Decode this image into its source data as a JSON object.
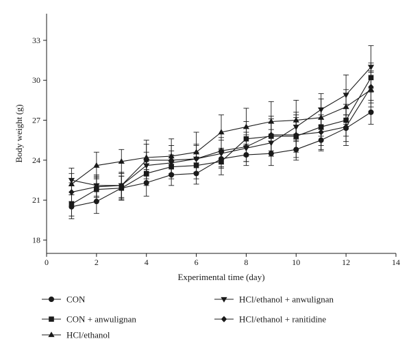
{
  "chart_data": {
    "type": "line",
    "title": "",
    "xlabel": "Experimental time (day)",
    "ylabel": "Body weight (g)",
    "xlim": [
      0,
      14
    ],
    "ylim": [
      17,
      35
    ],
    "xticks": [
      0,
      2,
      4,
      6,
      8,
      10,
      12,
      14
    ],
    "yticks": [
      18,
      21,
      24,
      27,
      30,
      33
    ],
    "grid": false,
    "legend_position": "bottom",
    "x": [
      1,
      2,
      3,
      4,
      5,
      6,
      7,
      8,
      9,
      10,
      11,
      12,
      13
    ],
    "series": [
      {
        "name": "CON",
        "marker": "circle",
        "values": [
          20.5,
          20.9,
          21.9,
          22.3,
          22.9,
          23.0,
          24.1,
          24.4,
          24.5,
          24.8,
          25.5,
          26.4,
          27.6
        ],
        "errors": [
          0.9,
          0.9,
          0.9,
          1.0,
          0.8,
          0.8,
          0.7,
          0.8,
          0.9,
          0.8,
          0.8,
          1.0,
          0.9
        ]
      },
      {
        "name": "CON + anwulignan",
        "marker": "square",
        "values": [
          20.7,
          21.8,
          21.9,
          23.0,
          23.5,
          23.6,
          23.9,
          25.6,
          25.8,
          25.8,
          26.5,
          27.0,
          30.2
        ],
        "errors": [
          0.9,
          0.9,
          0.9,
          0.9,
          0.9,
          1.0,
          1.0,
          1.3,
          1.5,
          1.6,
          1.4,
          1.2,
          1.1
        ]
      },
      {
        "name": "HCl/ethanol",
        "marker": "triangle-up",
        "values": [
          22.2,
          23.6,
          23.9,
          24.2,
          24.3,
          24.6,
          26.1,
          26.5,
          26.9,
          27.0,
          27.2,
          28.0,
          29.3
        ],
        "errors": [
          0.8,
          1.0,
          0.9,
          1.3,
          1.3,
          1.5,
          1.3,
          1.4,
          1.5,
          1.5,
          1.4,
          1.3,
          1.3
        ]
      },
      {
        "name": "HCl/ethanol + anwulignan",
        "marker": "triangle-down",
        "values": [
          22.5,
          22.1,
          22.1,
          23.6,
          23.8,
          24.1,
          24.5,
          24.9,
          25.3,
          26.5,
          27.8,
          28.9,
          31.0
        ],
        "errors": [
          0.9,
          0.8,
          1.0,
          1.0,
          0.9,
          1.0,
          1.0,
          1.0,
          1.0,
          1.1,
          1.2,
          1.5,
          1.6
        ]
      },
      {
        "name": "HCl/ethanol + ranitidine",
        "marker": "diamond",
        "values": [
          21.6,
          22.0,
          22.1,
          24.0,
          24.0,
          24.1,
          24.7,
          25.0,
          25.9,
          25.9,
          26.1,
          26.5,
          29.5
        ],
        "errors": [
          0.7,
          0.8,
          0.9,
          1.2,
          1.1,
          1.1,
          1.0,
          1.1,
          1.2,
          1.3,
          1.3,
          1.4,
          1.2
        ]
      }
    ]
  }
}
